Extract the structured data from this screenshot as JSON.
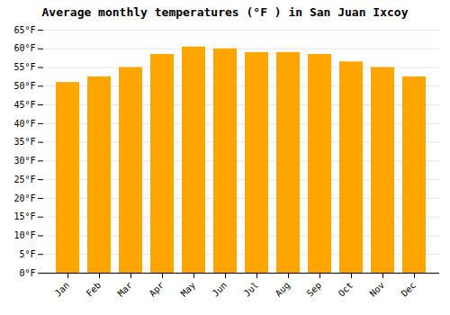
{
  "chart_data": {
    "type": "bar",
    "title": "Average monthly temperatures (°F ) in San Juan Ixcoy",
    "categories": [
      "Jan",
      "Feb",
      "Mar",
      "Apr",
      "May",
      "Jun",
      "Jul",
      "Aug",
      "Sep",
      "Oct",
      "Nov",
      "Dec"
    ],
    "values": [
      51,
      52.5,
      55,
      58.5,
      60.5,
      60,
      59,
      59,
      58.5,
      56.5,
      55,
      52.5
    ],
    "color": "#FFA500",
    "ylim": [
      0,
      65
    ],
    "yticks": [
      {
        "value": 0,
        "label": "0°F"
      },
      {
        "value": 5,
        "label": "5°F"
      },
      {
        "value": 10,
        "label": "10°F"
      },
      {
        "value": 15,
        "label": "15°F"
      },
      {
        "value": 20,
        "label": "20°F"
      },
      {
        "value": 25,
        "label": "25°F"
      },
      {
        "value": 30,
        "label": "30°F"
      },
      {
        "value": 35,
        "label": "35°F"
      },
      {
        "value": 40,
        "label": "40°F"
      },
      {
        "value": 45,
        "label": "45°F"
      },
      {
        "value": 50,
        "label": "50°F"
      },
      {
        "value": 55,
        "label": "55°F"
      },
      {
        "value": 60,
        "label": "60°F"
      },
      {
        "value": 65,
        "label": "65°F"
      }
    ],
    "grid": true
  }
}
